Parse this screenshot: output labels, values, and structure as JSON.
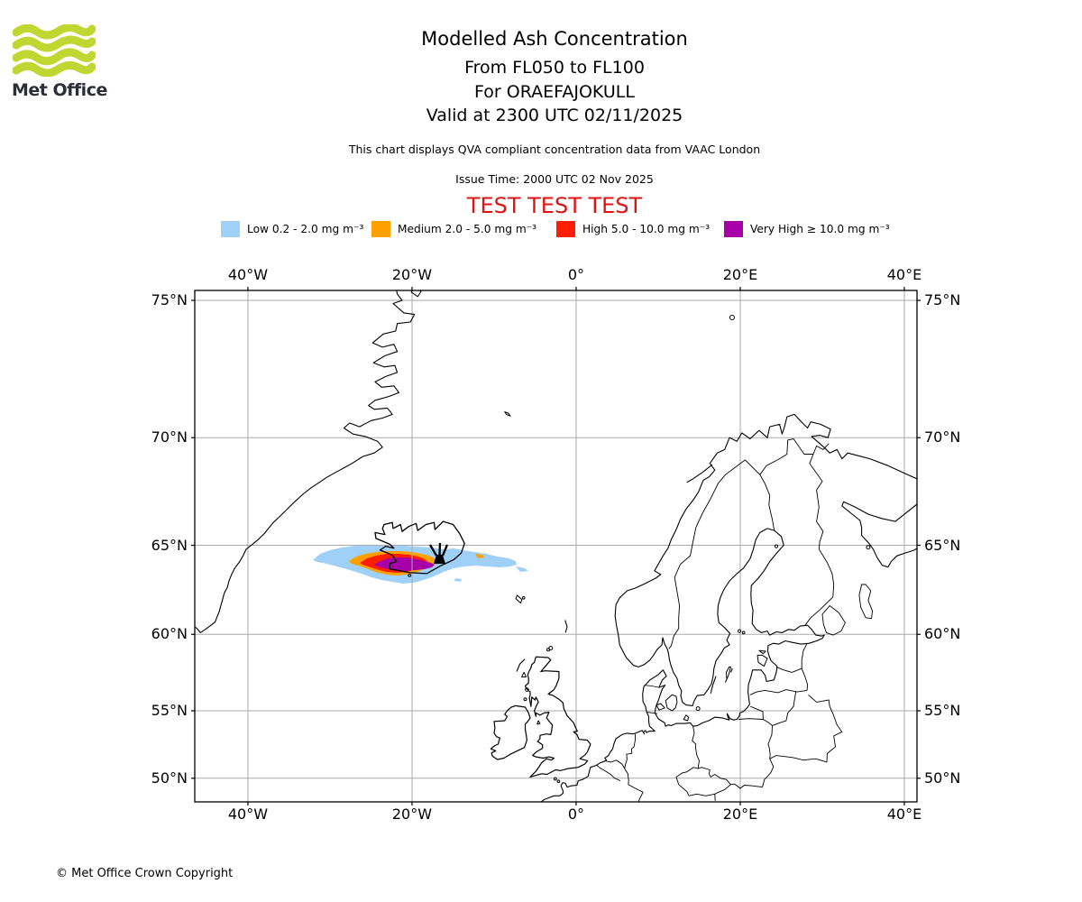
{
  "header": {
    "logo_text": "Met Office",
    "title": "Modelled Ash Concentration",
    "subtitle_fl": "From FL050 to FL100",
    "subtitle_volcano": "For ORAEFAJOKULL",
    "subtitle_valid": "Valid at 2300 UTC 02/11/2025",
    "description": "This chart displays QVA compliant concentration data from VAAC London",
    "issue_time": "Issue Time: 2000 UTC 02 Nov 2025",
    "test_banner": "TEST TEST TEST"
  },
  "colors": {
    "logo_green": "#bfd730",
    "test_banner_red": "#e01313",
    "gridline_gray": "#aaaaaa"
  },
  "legend": {
    "items": [
      {
        "label": "Low 0.2 - 2.0 mg m⁻³",
        "color": "#9fd0f7"
      },
      {
        "label": "Medium 2.0 - 5.0 mg m⁻³",
        "color": "#ffa000"
      },
      {
        "label": "High 5.0 - 10.0 mg m⁻³",
        "color": "#ff1e00"
      },
      {
        "label": "Very High  ≥  10.0 mg m⁻³",
        "color": "#a800a8"
      }
    ]
  },
  "map": {
    "x_ticks": [
      "40°W",
      "20°W",
      "0°",
      "20°E",
      "40°E"
    ],
    "y_ticks": [
      "75°N",
      "70°N",
      "65°N",
      "60°N",
      "55°N",
      "50°N"
    ]
  },
  "footer": {
    "copyright": "© Met Office Crown Copyright"
  },
  "chart_data": {
    "type": "map",
    "projection": "mercator",
    "extent": {
      "lon_deg": [
        -46.5,
        41.5
      ],
      "lat_deg": [
        48.1,
        75.3
      ]
    },
    "grid": {
      "lon_ticks_deg": [
        -40,
        -20,
        0,
        20,
        40
      ],
      "lat_ticks_deg": [
        75,
        70,
        65,
        60,
        55,
        50
      ],
      "grid_on": true
    },
    "concentration_bands": [
      {
        "level": "Low",
        "range": "0.2 - 2.0 mg m-3",
        "color": "#9fd0f7"
      },
      {
        "level": "Medium",
        "range": "2.0 - 5.0 mg m-3",
        "color": "#ffa000"
      },
      {
        "level": "High",
        "range": "5.0 - 10.0 mg m-3",
        "color": "#ff1e00"
      },
      {
        "level": "Very High",
        "range": ">= 10.0 mg m-3",
        "color": "#a800a8"
      }
    ],
    "plume": {
      "flight_levels": "FL050-FL100",
      "approx_lon_extent_deg": [
        -31.5,
        -7.0
      ],
      "approx_lat_extent_deg": [
        63.0,
        64.8
      ],
      "note": "Elongated east-west plume south of Iceland; nested Low/Medium/High/Very High contours centred near 64N 20W"
    },
    "volcano": {
      "name": "ORAEFAJOKULL",
      "approx_lat_lon": [
        64.0,
        -16.7
      ],
      "marker": "black eruption symbol"
    }
  }
}
